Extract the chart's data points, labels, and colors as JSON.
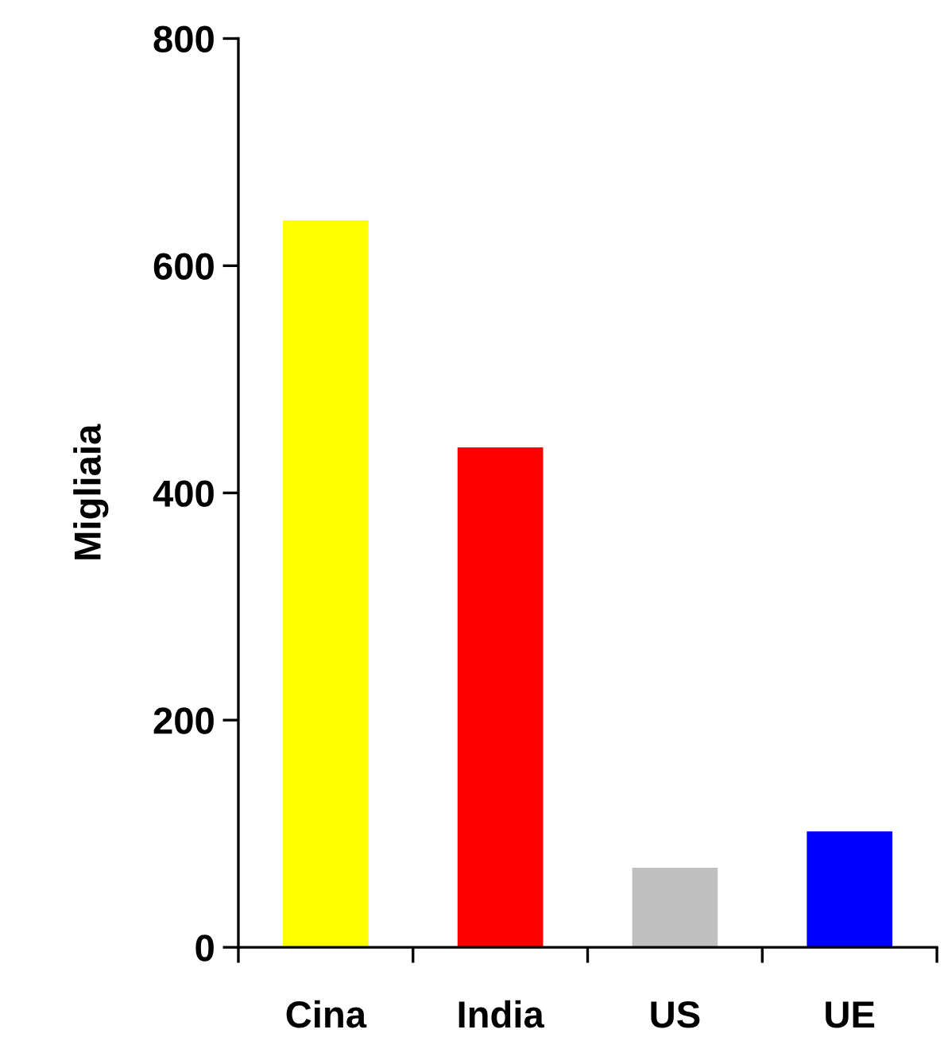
{
  "chart_data": {
    "type": "bar",
    "ylabel": "Migliaia",
    "categories": [
      "Cina",
      "India",
      "US",
      "UE"
    ],
    "values": [
      640,
      440,
      70,
      102
    ],
    "colors": [
      "#ffff00",
      "#ff0000",
      "#c0c0c0",
      "#0000ff"
    ],
    "ylim": [
      0,
      800
    ],
    "yticks": [
      0,
      200,
      400,
      600,
      800
    ],
    "grid": false,
    "legend": false
  }
}
